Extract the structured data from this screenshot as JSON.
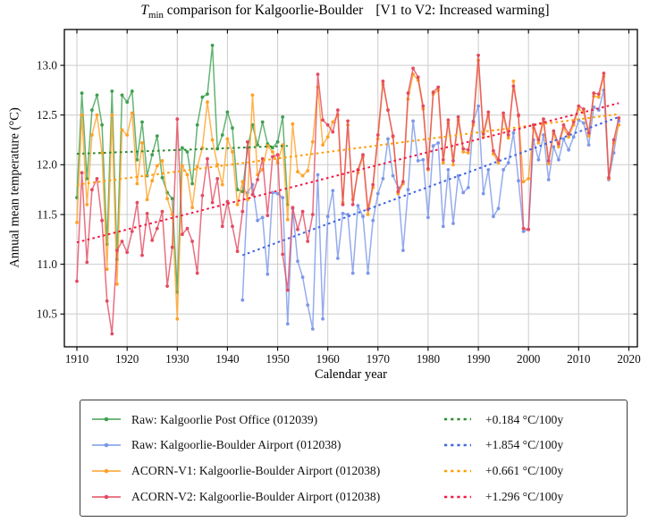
{
  "figure": {
    "title": {
      "symbol": "T",
      "subscript": "min",
      "main": " comparison for Kalgoorlie-Boulder",
      "annotation": "[V1 to V2: Increased warming]"
    },
    "x_label": "Calendar year",
    "y_label": "Annual mean temperature (°C)"
  },
  "legend": {
    "entries": [
      {
        "label": "Raw: Kalgoorlie Post Office (012039)",
        "trend_label": "+0.184 °C/100y",
        "color": "#3ea050",
        "trend_color": "#2e8b2e"
      },
      {
        "label": "Raw: Kalgoorlie-Boulder Airport (012038)",
        "trend_label": "+1.854 °C/100y",
        "color": "#7b97e8",
        "trend_color": "#4065e0"
      },
      {
        "label": "ACORN-V1: Kalgoorlie-Boulder Airport (012038)",
        "trend_label": "+0.661 °C/100y",
        "color": "#ffa126",
        "trend_color": "#ff9d00"
      },
      {
        "label": "ACORN-V2: Kalgoorlie-Boulder Airport (012038)",
        "trend_label": "+1.296 °C/100y",
        "color": "#e34b60",
        "trend_color": "#f01945"
      }
    ]
  },
  "chart_data": {
    "type": "line",
    "title": "Tmin comparison for Kalgoorlie-Boulder [V1 to V2: Increased warming]",
    "xlabel": "Calendar year",
    "ylabel": "Annual mean temperature (°C)",
    "xlim": [
      1907.5,
      2021.7
    ],
    "ylim": [
      10.17,
      13.36
    ],
    "x_ticks": [
      1910,
      1920,
      1930,
      1940,
      1950,
      1960,
      1970,
      1980,
      1990,
      2000,
      2010,
      2020
    ],
    "x_tick_labels": [
      "1910",
      "1920",
      "1930",
      "1940",
      "1950",
      "1960",
      "1970",
      "1980",
      "1990",
      "2000",
      "2010",
      "2020"
    ],
    "y_ticks": [
      10.5,
      11.0,
      11.5,
      12.0,
      12.5,
      13.0
    ],
    "y_tick_labels": [
      "10.5",
      "11.0",
      "11.5",
      "12.0",
      "12.5",
      "13.0"
    ],
    "grid": true,
    "legend_position": "below",
    "values_note": "annual values estimated from pixels, ±0.1 °C",
    "series": [
      {
        "name": "Raw: Kalgoorlie Post Office (012039)",
        "color": "#3ea050",
        "start_year": 1910,
        "values": [
          11.67,
          12.72,
          11.86,
          12.55,
          12.7,
          12.4,
          11.2,
          12.74,
          11.05,
          12.7,
          12.63,
          12.74,
          12.05,
          12.43,
          11.89,
          12.1,
          12.29,
          11.87,
          11.72,
          11.66,
          10.72,
          12.17,
          12.13,
          11.81,
          12.4,
          12.68,
          12.71,
          13.2,
          12.16,
          12.3,
          12.53,
          12.37,
          11.75,
          11.73,
          12.17,
          12.4,
          12.2,
          12.43,
          12.21,
          12.17,
          12.23,
          12.48,
          11.6
        ]
      },
      {
        "name": "Raw: Kalgoorlie-Boulder Airport (012038)",
        "color": "#7b97e8",
        "start_year": 1943,
        "values": [
          10.64,
          11.72,
          11.8,
          11.44,
          11.47,
          10.9,
          11.72,
          11.71,
          11.67,
          10.4,
          11.56,
          11.03,
          10.87,
          10.59,
          10.35,
          11.9,
          10.45,
          11.48,
          11.74,
          11.06,
          11.51,
          11.5,
          10.91,
          11.59,
          11.48,
          10.91,
          11.44,
          11.71,
          11.86,
          12.26,
          11.89,
          11.77,
          11.14,
          11.75,
          12.44,
          12.04,
          12.05,
          11.47,
          12.19,
          12.22,
          11.38,
          11.95,
          11.41,
          11.89,
          11.72,
          11.77,
          12.44,
          12.59,
          11.71,
          11.95,
          11.48,
          11.56,
          11.95,
          12.02,
          12.32,
          11.84,
          11.33,
          11.35,
          12.25,
          12.05,
          12.3,
          11.85,
          12.18,
          12.05,
          12.26,
          12.15,
          12.28,
          12.45,
          12.42,
          12.2,
          12.58,
          12.55,
          12.75,
          11.85,
          12.12,
          12.44
        ]
      },
      {
        "name": "ACORN-V1: Kalgoorlie-Boulder Airport (012038)",
        "color": "#ffa126",
        "start_year": 1910,
        "values": [
          11.42,
          12.5,
          11.6,
          12.3,
          12.5,
          12.12,
          10.95,
          12.5,
          10.8,
          12.35,
          12.3,
          12.52,
          11.81,
          12.22,
          11.65,
          11.84,
          11.99,
          12.04,
          11.66,
          11.5,
          10.45,
          11.99,
          11.9,
          11.57,
          11.98,
          12.17,
          12.63,
          12.25,
          12.0,
          11.8,
          12.26,
          12.13,
          11.6,
          11.83,
          11.65,
          12.7,
          11.9,
          11.95,
          12.19,
          12.13,
          12.02,
          12.2,
          11.45,
          12.41,
          11.93,
          11.89,
          11.94,
          12.23,
          12.78,
          12.2,
          12.28,
          12.43,
          12.5,
          11.62,
          12.4,
          11.65,
          11.92,
          12.08,
          11.5,
          11.77,
          12.26,
          12.81,
          12.55,
          12.28,
          11.71,
          11.81,
          12.66,
          12.91,
          12.85,
          12.56,
          11.95,
          12.71,
          12.75,
          12.02,
          12.42,
          12.0,
          12.45,
          12.13,
          12.12,
          12.4,
          13.05,
          12.28,
          12.5,
          12.11,
          12.02,
          12.49,
          12.27,
          12.84,
          12.49,
          11.83,
          11.86,
          12.37,
          12.22,
          12.43,
          12.01,
          12.31,
          12.18,
          12.37,
          12.28,
          12.4,
          12.56,
          12.53,
          12.29,
          12.69,
          12.68,
          12.89,
          11.86,
          12.22,
          12.4
        ]
      },
      {
        "name": "ACORN-V2: Kalgoorlie-Boulder Airport (012038)",
        "color": "#e34b60",
        "start_year": 1910,
        "values": [
          10.83,
          11.92,
          11.02,
          11.75,
          11.86,
          11.44,
          10.63,
          10.3,
          11.14,
          11.23,
          11.12,
          11.33,
          11.62,
          11.09,
          11.51,
          11.24,
          11.36,
          11.53,
          10.78,
          11.17,
          12.46,
          11.3,
          11.36,
          11.23,
          10.91,
          11.69,
          12.06,
          11.62,
          11.86,
          11.38,
          11.63,
          11.38,
          11.13,
          11.53,
          12.23,
          11.7,
          11.85,
          12.06,
          11.49,
          12.08,
          12.1,
          11.1,
          10.74,
          11.57,
          11.35,
          11.53,
          11.23,
          11.5,
          12.91,
          12.45,
          12.4,
          12.33,
          12.55,
          11.6,
          12.44,
          11.6,
          11.95,
          12.1,
          11.55,
          11.8,
          12.3,
          12.84,
          12.55,
          12.29,
          11.73,
          11.83,
          12.72,
          12.97,
          12.88,
          12.59,
          11.96,
          12.73,
          12.78,
          12.05,
          12.45,
          12.04,
          12.48,
          12.16,
          12.15,
          12.43,
          13.1,
          12.31,
          12.53,
          12.14,
          12.05,
          12.52,
          12.3,
          12.79,
          12.5,
          11.36,
          11.35,
          12.4,
          12.25,
          12.46,
          12.04,
          12.34,
          12.21,
          12.4,
          12.31,
          12.43,
          12.59,
          12.56,
          12.32,
          12.72,
          12.71,
          12.92,
          11.87,
          12.25,
          12.47
        ]
      }
    ],
    "trend_lines": [
      {
        "name": "+0.184 °C/100y",
        "color": "#2e8b2e",
        "x": [
          1910,
          1952
        ],
        "y": [
          12.11,
          12.19
        ]
      },
      {
        "name": "+1.854 °C/100y",
        "color": "#4065e0",
        "x": [
          1943,
          2018
        ],
        "y": [
          11.09,
          12.48
        ]
      },
      {
        "name": "+0.661 °C/100y",
        "color": "#ff9d00",
        "x": [
          1910,
          2018
        ],
        "y": [
          11.8,
          12.51
        ]
      },
      {
        "name": "+1.296 °C/100y",
        "color": "#f01945",
        "x": [
          1910,
          2018
        ],
        "y": [
          11.22,
          12.62
        ]
      }
    ]
  }
}
